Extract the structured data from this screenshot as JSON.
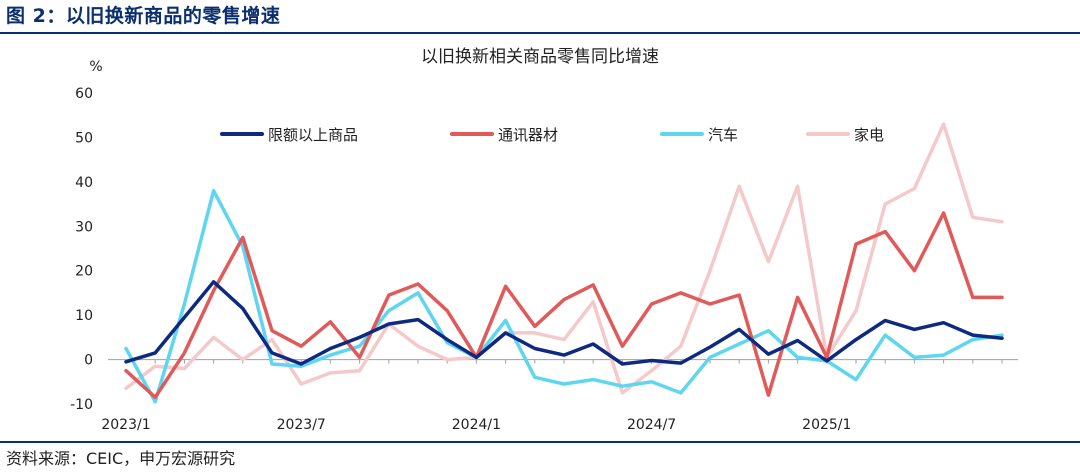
{
  "figure_title": "图 2：以旧换新商品的零售增速",
  "source": "资料来源：CEIC，申万宏源研究",
  "chart_data": {
    "type": "line",
    "title": "以旧换新相关商品零售同比增速",
    "ylabel": "%",
    "xlabel": "",
    "ylim": [
      -10,
      60
    ],
    "yticks": [
      -10,
      0,
      10,
      20,
      30,
      40,
      50,
      60
    ],
    "x": [
      "2023/1",
      "2023/2",
      "2023/3",
      "2023/4",
      "2023/5",
      "2023/6",
      "2023/7",
      "2023/8",
      "2023/9",
      "2023/10",
      "2023/11",
      "2023/12",
      "2024/1",
      "2024/2",
      "2024/3",
      "2024/4",
      "2024/5",
      "2024/6",
      "2024/7",
      "2024/8",
      "2024/9",
      "2024/10",
      "2024/11",
      "2024/12",
      "2025/1",
      "2025/2",
      "2025/3",
      "2025/4",
      "2025/5",
      "2025/6",
      "2025/7"
    ],
    "x_tick_labels": [
      "2023/1",
      "2023/7",
      "2024/1",
      "2024/7",
      "2025/1"
    ],
    "series": [
      {
        "name": "限额以上商品",
        "color": "#0d2a80",
        "values": [
          -0.5,
          1.5,
          9.5,
          17.5,
          11.5,
          1.5,
          -1.0,
          2.5,
          5.0,
          8.0,
          9.0,
          4.5,
          0.5,
          6.0,
          2.5,
          1.0,
          3.5,
          -1.0,
          -0.2,
          -0.8,
          2.8,
          6.8,
          1.2,
          4.3,
          -0.3,
          4.5,
          8.8,
          6.8,
          8.3,
          5.5,
          4.8
        ]
      },
      {
        "name": "通讯器材",
        "color": "#e05a5a",
        "values": [
          -2.5,
          -8.5,
          1.5,
          15.5,
          27.5,
          6.5,
          3.0,
          8.5,
          0.5,
          14.5,
          17.0,
          11.0,
          0.5,
          16.5,
          7.5,
          13.5,
          16.8,
          3.0,
          12.5,
          15.0,
          12.5,
          14.5,
          -8.0,
          14.0,
          0.5,
          26.0,
          28.8,
          20.0,
          33.0,
          14.0,
          14.0
        ]
      },
      {
        "name": "汽车",
        "color": "#5fd6ef",
        "values": [
          2.5,
          -9.5,
          12.5,
          38.0,
          25.5,
          -1.0,
          -1.5,
          1.0,
          3.0,
          11.0,
          15.0,
          3.8,
          0.5,
          8.8,
          -4.0,
          -5.5,
          -4.5,
          -6.0,
          -5.0,
          -7.5,
          0.5,
          3.5,
          6.5,
          0.5,
          -0.3,
          -4.5,
          5.5,
          0.5,
          1.0,
          4.5,
          5.5
        ]
      },
      {
        "name": "家电",
        "color": "#f5c9c9",
        "values": [
          -6.5,
          -1.5,
          -2.0,
          5.0,
          0.0,
          4.5,
          -5.5,
          -3.0,
          -2.5,
          8.0,
          3.0,
          0.0,
          0.5,
          6.0,
          6.0,
          4.5,
          13.0,
          -7.5,
          -2.5,
          3.0,
          20.0,
          39.0,
          22.0,
          39.0,
          0.5,
          11.0,
          35.0,
          38.5,
          53.0,
          32.0,
          31.0
        ]
      }
    ]
  }
}
